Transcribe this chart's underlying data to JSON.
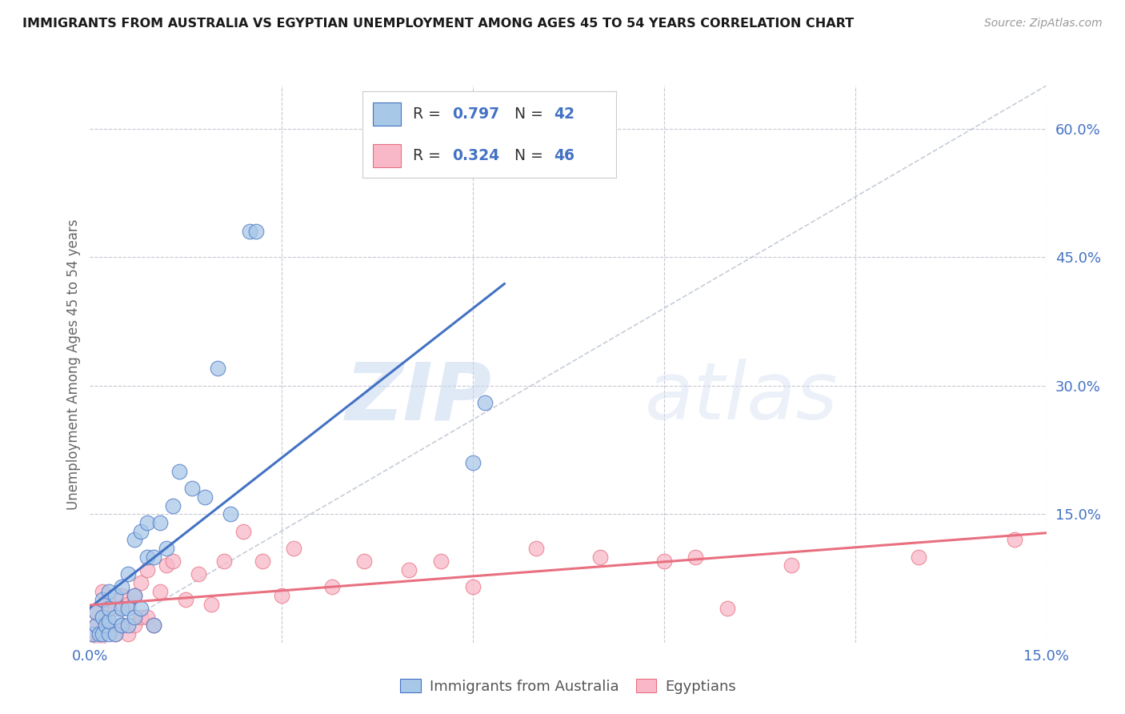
{
  "title": "IMMIGRANTS FROM AUSTRALIA VS EGYPTIAN UNEMPLOYMENT AMONG AGES 45 TO 54 YEARS CORRELATION CHART",
  "source": "Source: ZipAtlas.com",
  "ylabel": "Unemployment Among Ages 45 to 54 years",
  "xlim": [
    0.0,
    0.15
  ],
  "ylim": [
    0.0,
    0.65
  ],
  "x_ticks": [
    0.0,
    0.03,
    0.06,
    0.09,
    0.12,
    0.15
  ],
  "x_tick_labels": [
    "0.0%",
    "",
    "",
    "",
    "",
    "15.0%"
  ],
  "y_ticks": [
    0.0,
    0.15,
    0.3,
    0.45,
    0.6
  ],
  "y_tick_labels": [
    "",
    "15.0%",
    "30.0%",
    "45.0%",
    "60.0%"
  ],
  "color_blue": "#A8C8E8",
  "color_pink": "#F8B8C8",
  "color_blue_line": "#4472C4",
  "color_pink_line": "#E87080",
  "color_diag": "#B8C0D0",
  "background_color": "#FFFFFF",
  "watermark_zip": "ZIP",
  "watermark_atlas": "atlas",
  "aus_x": [
    0.0005,
    0.001,
    0.001,
    0.0015,
    0.002,
    0.002,
    0.002,
    0.0025,
    0.003,
    0.003,
    0.003,
    0.003,
    0.004,
    0.004,
    0.004,
    0.005,
    0.005,
    0.005,
    0.006,
    0.006,
    0.006,
    0.007,
    0.007,
    0.007,
    0.008,
    0.008,
    0.009,
    0.009,
    0.01,
    0.01,
    0.011,
    0.012,
    0.013,
    0.014,
    0.016,
    0.018,
    0.02,
    0.022,
    0.025,
    0.026,
    0.06,
    0.062
  ],
  "aus_y": [
    0.01,
    0.02,
    0.035,
    0.01,
    0.01,
    0.03,
    0.05,
    0.02,
    0.01,
    0.025,
    0.04,
    0.06,
    0.01,
    0.03,
    0.055,
    0.02,
    0.04,
    0.065,
    0.02,
    0.04,
    0.08,
    0.03,
    0.055,
    0.12,
    0.04,
    0.13,
    0.1,
    0.14,
    0.02,
    0.1,
    0.14,
    0.11,
    0.16,
    0.2,
    0.18,
    0.17,
    0.32,
    0.15,
    0.48,
    0.48,
    0.21,
    0.28
  ],
  "egy_x": [
    0.0005,
    0.001,
    0.001,
    0.0015,
    0.002,
    0.002,
    0.002,
    0.003,
    0.003,
    0.004,
    0.004,
    0.005,
    0.005,
    0.006,
    0.006,
    0.007,
    0.007,
    0.008,
    0.008,
    0.009,
    0.009,
    0.01,
    0.011,
    0.012,
    0.013,
    0.015,
    0.017,
    0.019,
    0.021,
    0.024,
    0.027,
    0.03,
    0.032,
    0.038,
    0.043,
    0.05,
    0.055,
    0.06,
    0.07,
    0.08,
    0.09,
    0.095,
    0.1,
    0.11,
    0.13,
    0.145
  ],
  "egy_y": [
    0.01,
    0.02,
    0.035,
    0.005,
    0.015,
    0.03,
    0.06,
    0.02,
    0.045,
    0.01,
    0.04,
    0.02,
    0.055,
    0.01,
    0.045,
    0.02,
    0.055,
    0.03,
    0.07,
    0.03,
    0.085,
    0.02,
    0.06,
    0.09,
    0.095,
    0.05,
    0.08,
    0.045,
    0.095,
    0.13,
    0.095,
    0.055,
    0.11,
    0.065,
    0.095,
    0.085,
    0.095,
    0.065,
    0.11,
    0.1,
    0.095,
    0.1,
    0.04,
    0.09,
    0.1,
    0.12
  ]
}
